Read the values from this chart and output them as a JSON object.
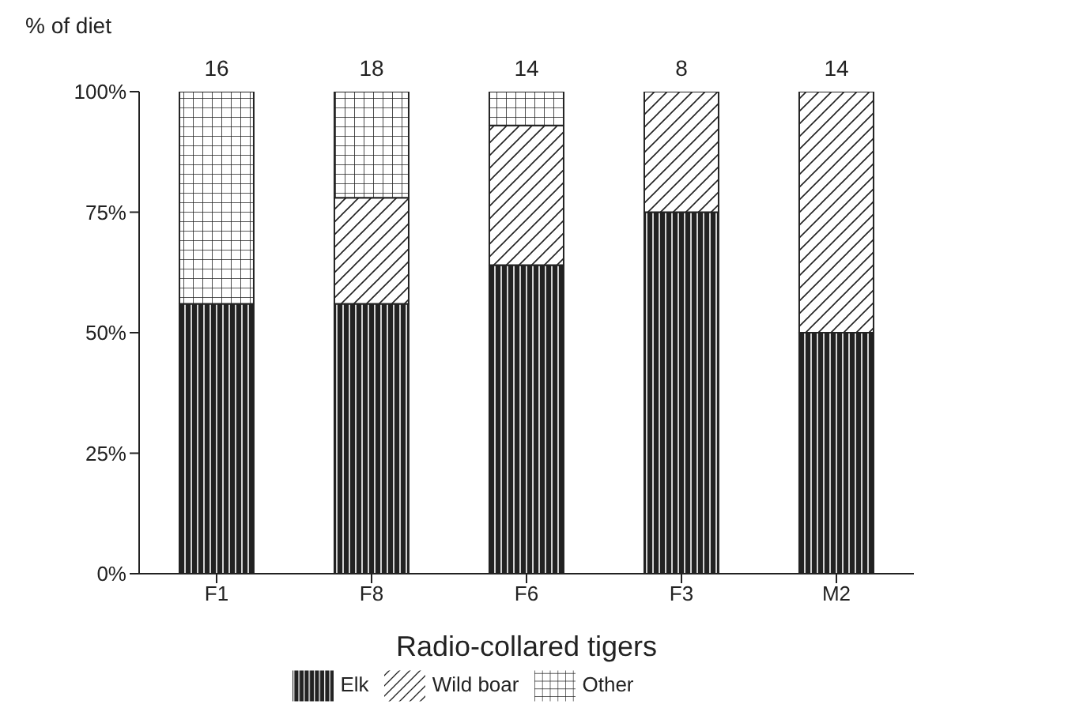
{
  "chart_data": {
    "type": "bar",
    "stacked": true,
    "xlabel": "Radio-collared tigers",
    "ylabel": "% of diet",
    "categories": [
      "F1",
      "F8",
      "F6",
      "F3",
      "M2"
    ],
    "series": [
      {
        "name": "Elk",
        "color": "#222222",
        "values": [
          56,
          56,
          64,
          75,
          50
        ]
      },
      {
        "name": "Wild boar",
        "color": "#222222",
        "values": [
          0,
          22,
          29,
          25,
          50
        ]
      },
      {
        "name": "Other",
        "color": "#222222",
        "values": [
          44,
          22,
          7,
          0,
          0
        ]
      }
    ],
    "annotations": [
      {
        "text": "16",
        "x": "F1",
        "y": 100
      },
      {
        "text": "18",
        "x": "F8",
        "y": 100
      },
      {
        "text": "14",
        "x": "F6",
        "y": 100
      },
      {
        "text": "8",
        "x": "F3",
        "y": 100
      },
      {
        "text": "14",
        "x": "M2",
        "y": 100
      }
    ],
    "ylim": [
      0,
      100
    ],
    "yticks": [
      {
        "value": 0,
        "label": "0%"
      },
      {
        "value": 25,
        "label": "25%"
      },
      {
        "value": 50,
        "label": "50%"
      },
      {
        "value": 75,
        "label": "75%"
      },
      {
        "value": 100,
        "label": "100%"
      }
    ],
    "grid": false,
    "legend": "bottom"
  }
}
